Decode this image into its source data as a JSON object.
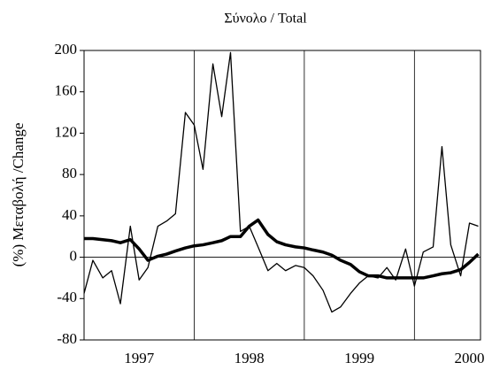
{
  "chart_data": {
    "type": "line",
    "title": "Σύνολο  / Total",
    "y_label": "(%) Μεταβολή /Change",
    "x": [
      1997.0,
      1997.08,
      1997.17,
      1997.25,
      1997.33,
      1997.42,
      1997.5,
      1997.58,
      1997.67,
      1997.75,
      1997.83,
      1997.92,
      1998.0,
      1998.08,
      1998.17,
      1998.25,
      1998.33,
      1998.42,
      1998.5,
      1998.58,
      1998.67,
      1998.75,
      1998.83,
      1998.92,
      1999.0,
      1999.08,
      1999.17,
      1999.25,
      1999.33,
      1999.42,
      1999.5,
      1999.58,
      1999.67,
      1999.75,
      1999.83,
      1999.92,
      2000.0,
      2000.08,
      2000.17,
      2000.25,
      2000.33,
      2000.42,
      2000.5,
      2000.58
    ],
    "series": [
      {
        "color": "#000000",
        "width": 1.3,
        "values": [
          -35,
          -3,
          -20,
          -13,
          -45,
          30,
          -22,
          -10,
          30,
          35,
          42,
          140,
          128,
          85,
          187,
          136,
          198,
          25,
          30,
          10,
          -13,
          -6,
          -13,
          -8,
          -10,
          -18,
          -32,
          -53,
          -48,
          -35,
          -25,
          -18,
          -20,
          -10,
          -22,
          8,
          -28,
          5,
          10,
          107,
          12,
          -18,
          33,
          30
        ]
      },
      {
        "color": "#000000",
        "width": 3.5,
        "values": [
          18,
          18,
          17,
          16,
          14,
          17,
          8,
          -3,
          1,
          3,
          6,
          9,
          11,
          12,
          14,
          16,
          20,
          20,
          30,
          36,
          22,
          15,
          12,
          10,
          9,
          7,
          5,
          2,
          -3,
          -7,
          -14,
          -18,
          -18,
          -20,
          -20,
          -20,
          -20,
          -20,
          -18,
          -16,
          -15,
          -12,
          -5,
          3
        ]
      }
    ],
    "xlim": [
      1997,
      2000.6
    ],
    "xticks": [
      {
        "value": 1997.5,
        "label": "1997"
      },
      {
        "value": 1998.5,
        "label": "1998"
      },
      {
        "value": 1999.5,
        "label": "1999"
      },
      {
        "value": 2000.5,
        "label": "2000"
      }
    ],
    "xgrid": [
      1998,
      1999,
      2000
    ],
    "ylim": [
      -80,
      200
    ],
    "yticks": [
      -80,
      -40,
      0,
      40,
      80,
      120,
      160,
      200
    ],
    "zero_line": true
  }
}
